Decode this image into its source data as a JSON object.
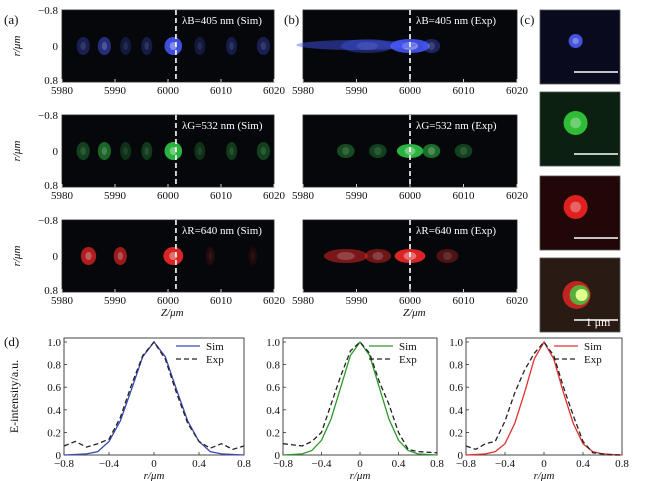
{
  "panel_labels": {
    "a": "(a)",
    "b": "(b)",
    "c": "(c)",
    "d": "(d)"
  },
  "axis": {
    "r_label": "r/μm",
    "z_label": "Z/μm",
    "y_ticks": [
      "−0.8",
      "0",
      "0.8"
    ],
    "z_ticks": [
      "5980",
      "5990",
      "6000",
      "6010",
      "6020"
    ],
    "e_label": "E-intensity/a.u.",
    "d_x_ticks": [
      "−0.8",
      "−0.4",
      "0",
      "0.4",
      "0.8"
    ],
    "d_y_ticks": [
      "0",
      "0.2",
      "0.4",
      "0.6",
      "0.8",
      "1.0"
    ]
  },
  "rows": [
    {
      "color_name": "blue",
      "color": "#4a5bff",
      "sim_title": "λB=405 nm (Sim)",
      "exp_title": "λB=405 nm (Exp)"
    },
    {
      "color_name": "green",
      "color": "#33d04a",
      "sim_title": "λG=532 nm (Sim)",
      "exp_title": "λG=532 nm (Exp)"
    },
    {
      "color_name": "red",
      "color": "#ff2a2a",
      "sim_title": "λR=640 nm (Sim)",
      "exp_title": "λR=640 nm (Exp)"
    }
  ],
  "c_panels": [
    {
      "color": "#5060ff",
      "bg": "#0a0a1e"
    },
    {
      "color": "#38d840",
      "bg": "#0b2010"
    },
    {
      "color": "#ff2525",
      "bg": "#210707"
    },
    {
      "color": "#e0ff90",
      "bg": "#2a1a14"
    }
  ],
  "scale_text": "1 μm",
  "legend": {
    "sim": "Sim",
    "exp": "Exp"
  },
  "chart_data": [
    {
      "type": "line",
      "title": "",
      "xlabel": "r/μm",
      "ylabel": "E-intensity/a.u.",
      "xlim": [
        -0.8,
        0.8
      ],
      "ylim": [
        0,
        1.0
      ],
      "sim_color": "#3a4bb0",
      "series": [
        {
          "name": "Sim",
          "x": [
            -0.8,
            -0.6,
            -0.5,
            -0.4,
            -0.3,
            -0.2,
            -0.1,
            0,
            0.1,
            0.2,
            0.3,
            0.4,
            0.5,
            0.6,
            0.8
          ],
          "values": [
            0,
            0.01,
            0.03,
            0.12,
            0.3,
            0.58,
            0.87,
            1.0,
            0.87,
            0.58,
            0.3,
            0.12,
            0.03,
            0.01,
            0
          ]
        },
        {
          "name": "Exp",
          "x": [
            -0.8,
            -0.7,
            -0.6,
            -0.5,
            -0.4,
            -0.3,
            -0.2,
            -0.1,
            0,
            0.1,
            0.2,
            0.3,
            0.4,
            0.5,
            0.6,
            0.7,
            0.8
          ],
          "values": [
            0.08,
            0.12,
            0.07,
            0.1,
            0.14,
            0.33,
            0.62,
            0.88,
            1.0,
            0.85,
            0.55,
            0.28,
            0.12,
            0.06,
            0.1,
            0.05,
            0.08
          ]
        }
      ]
    },
    {
      "type": "line",
      "title": "",
      "xlabel": "r/μm",
      "ylabel": "",
      "xlim": [
        -0.8,
        0.8
      ],
      "ylim": [
        0,
        1.0
      ],
      "sim_color": "#2a9a2a",
      "series": [
        {
          "name": "Sim",
          "x": [
            -0.8,
            -0.6,
            -0.5,
            -0.4,
            -0.3,
            -0.2,
            -0.1,
            0,
            0.1,
            0.2,
            0.3,
            0.4,
            0.5,
            0.6,
            0.8
          ],
          "values": [
            0,
            0.01,
            0.04,
            0.13,
            0.32,
            0.6,
            0.88,
            1.0,
            0.88,
            0.6,
            0.32,
            0.13,
            0.04,
            0.01,
            0
          ]
        },
        {
          "name": "Exp",
          "x": [
            -0.8,
            -0.6,
            -0.5,
            -0.4,
            -0.3,
            -0.2,
            -0.1,
            0,
            0.1,
            0.2,
            0.3,
            0.4,
            0.5,
            0.6,
            0.8
          ],
          "values": [
            0.1,
            0.08,
            0.12,
            0.2,
            0.45,
            0.7,
            0.92,
            1.0,
            0.9,
            0.65,
            0.45,
            0.2,
            0.05,
            0.03,
            0.02
          ]
        }
      ]
    },
    {
      "type": "line",
      "title": "",
      "xlabel": "r/μm",
      "ylabel": "",
      "xlim": [
        -0.8,
        0.8
      ],
      "ylim": [
        0,
        1.0
      ],
      "sim_color": "#e03030",
      "series": [
        {
          "name": "Sim",
          "x": [
            -0.8,
            -0.6,
            -0.5,
            -0.4,
            -0.3,
            -0.2,
            -0.1,
            0,
            0.1,
            0.2,
            0.3,
            0.4,
            0.5,
            0.6,
            0.8
          ],
          "values": [
            0,
            0.01,
            0.03,
            0.1,
            0.28,
            0.55,
            0.85,
            1.0,
            0.85,
            0.55,
            0.28,
            0.1,
            0.03,
            0.01,
            0
          ]
        },
        {
          "name": "Exp",
          "x": [
            -0.8,
            -0.7,
            -0.6,
            -0.5,
            -0.4,
            -0.3,
            -0.2,
            -0.1,
            0,
            0.1,
            0.2,
            0.3,
            0.4,
            0.5,
            0.6,
            0.7,
            0.8
          ],
          "values": [
            0.08,
            0.05,
            0.1,
            0.12,
            0.3,
            0.55,
            0.75,
            0.9,
            1.0,
            0.88,
            0.6,
            0.35,
            0.12,
            0.02,
            0.01,
            0,
            0
          ]
        }
      ]
    }
  ]
}
